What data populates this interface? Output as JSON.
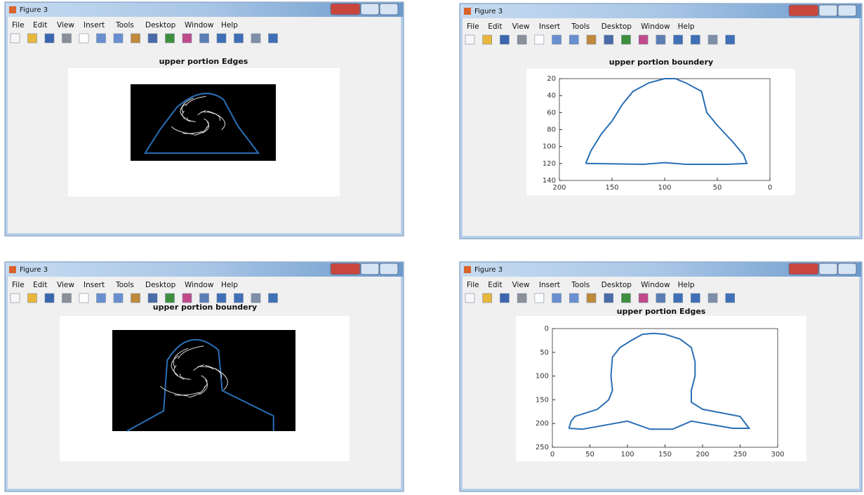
{
  "menu": [
    "File",
    "Edit",
    "View",
    "Insert",
    "Tools",
    "Desktop",
    "Window",
    "Help"
  ],
  "windows": [
    {
      "title": "Figure 3",
      "plot_title": "upper portion Edges"
    },
    {
      "title": "Figure 3",
      "plot_title": "upper portion boundery",
      "plot": {
        "type": "line",
        "color": "#2a6fb5",
        "x_reversed": true,
        "y_reversed": true,
        "xlim": [
          0,
          200
        ],
        "ylim": [
          20,
          140
        ],
        "xticks": [
          200,
          150,
          100,
          50,
          0
        ],
        "yticks": [
          20,
          40,
          60,
          80,
          100,
          120,
          140
        ],
        "x": [
          175,
          170,
          160,
          150,
          140,
          130,
          115,
          100,
          90,
          80,
          65,
          60,
          50,
          35,
          25,
          22,
          40,
          80,
          100,
          120,
          175
        ],
        "y": [
          120,
          105,
          85,
          70,
          50,
          35,
          25,
          20,
          20,
          25,
          35,
          60,
          75,
          95,
          110,
          120,
          121,
          121,
          119,
          121,
          120
        ]
      }
    },
    {
      "title": "Figure 3",
      "plot_title": "upper portion boundery"
    },
    {
      "title": "Figure 3",
      "plot_title": "upper portion Edges",
      "plot": {
        "type": "line",
        "color": "#2a6fb5",
        "x_reversed": false,
        "y_reversed": true,
        "xlim": [
          0,
          300
        ],
        "ylim": [
          0,
          250
        ],
        "xticks": [
          0,
          50,
          100,
          150,
          200,
          250,
          300
        ],
        "yticks": [
          0,
          50,
          100,
          150,
          200,
          250
        ],
        "x": [
          22,
          25,
          30,
          60,
          75,
          80,
          78,
          80,
          90,
          105,
          120,
          135,
          150,
          170,
          185,
          190,
          190,
          185,
          185,
          200,
          250,
          262,
          240,
          185,
          160,
          130,
          100,
          40,
          22
        ],
        "y": [
          210,
          195,
          185,
          170,
          150,
          130,
          100,
          60,
          40,
          25,
          12,
          10,
          12,
          22,
          40,
          70,
          100,
          130,
          155,
          170,
          185,
          210,
          210,
          195,
          212,
          212,
          195,
          212,
          210
        ]
      }
    }
  ]
}
